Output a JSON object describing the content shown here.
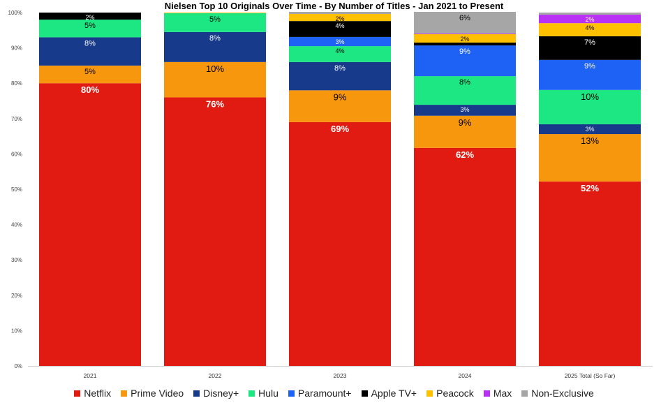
{
  "chart_data": {
    "type": "bar",
    "stacked": true,
    "title": "Nielsen Top 10 Originals Over Time - By Number of Titles - Jan 2021 to Present",
    "xlabel": "",
    "ylabel": "",
    "ylim": [
      0,
      100
    ],
    "y_ticks": [
      "0%",
      "10%",
      "20%",
      "30%",
      "40%",
      "50%",
      "60%",
      "70%",
      "80%",
      "90%",
      "100%"
    ],
    "categories": [
      "2021",
      "2022",
      "2023",
      "2024",
      "2025 Total (So Far)"
    ],
    "legend_position": "bottom",
    "grid": false,
    "series": [
      {
        "name": "Netflix",
        "color": "#E11B12",
        "label_color": "#ffffff",
        "values": [
          80,
          76,
          69,
          61.7,
          52.2
        ],
        "labels": [
          "80%",
          "76%",
          "69%",
          "62%",
          "52%"
        ]
      },
      {
        "name": "Prime Video",
        "color": "#F7970E",
        "label_color": "#000000",
        "values": [
          5,
          10,
          9,
          9.1,
          13.4
        ],
        "labels": [
          "5%",
          "10%",
          "9%",
          "9%",
          "13%"
        ]
      },
      {
        "name": "Disney+",
        "color": "#173A8B",
        "label_color": "#ffffff",
        "values": [
          8,
          8.5,
          8,
          3.1,
          2.8
        ],
        "labels": [
          "8%",
          "8%",
          "8%",
          "3%",
          "3%"
        ]
      },
      {
        "name": "Hulu",
        "color": "#1CE783",
        "label_color": "#000000",
        "values": [
          5,
          5.3,
          4.5,
          8.1,
          9.7
        ],
        "labels": [
          "5%",
          "5%",
          "4%",
          "8%",
          "10%"
        ]
      },
      {
        "name": "Paramount+",
        "color": "#1E61F5",
        "label_color": "#ffffff",
        "values": [
          0,
          0,
          2.6,
          8.7,
          8.5
        ],
        "labels": [
          null,
          null,
          "3%",
          "9%",
          "9%"
        ]
      },
      {
        "name": "Apple TV+",
        "color": "#000000",
        "label_color": "#ffffff",
        "values": [
          2,
          0,
          4.5,
          0.8,
          6.7
        ],
        "labels": [
          "2%",
          null,
          "4%",
          null,
          "7%"
        ]
      },
      {
        "name": "Peacock",
        "color": "#FFC000",
        "label_color": "#000000",
        "values": [
          0,
          0.2,
          2,
          2.4,
          3.7
        ],
        "labels": [
          null,
          null,
          "2%",
          "2%",
          "4%"
        ]
      },
      {
        "name": "Max",
        "color": "#B931F5",
        "label_color": "#ffffff",
        "values": [
          0,
          0,
          0,
          0.2,
          2.4
        ],
        "labels": [
          null,
          null,
          null,
          null,
          "2%"
        ]
      },
      {
        "name": "Non-Exclusive",
        "color": "#A6A6A6",
        "label_color": "#000000",
        "values": [
          0,
          0,
          0.6,
          6.1,
          0.6
        ],
        "labels": [
          null,
          null,
          null,
          "6%",
          null
        ]
      }
    ]
  }
}
